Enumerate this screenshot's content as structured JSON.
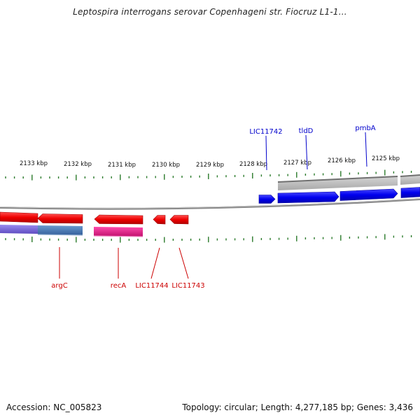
{
  "title": "Leptospira interrogans serovar Copenhageni str. Fiocruz L1-1...",
  "footer": {
    "accession": "Accession: NC_005823",
    "stats": "Topology: circular; Length: 4,277,185 bp; Genes: 3,436"
  },
  "scale_labels": [
    "2133 kbp",
    "2132 kbp",
    "2131 kbp",
    "2130 kbp",
    "2129 kbp",
    "2128 kbp",
    "2127 kbp",
    "2126 kbp",
    "2125 kbp"
  ],
  "forward_genes": [
    {
      "label": "LIC11742"
    },
    {
      "label": "tldD"
    },
    {
      "label": "pmbA"
    }
  ],
  "reverse_genes": [
    {
      "label": "argC"
    },
    {
      "label": "recA"
    },
    {
      "label": "LIC11744"
    },
    {
      "label": "LIC11743"
    }
  ],
  "colors": {
    "forward_gene": "#0000ee",
    "reverse_gene": "#ee0000",
    "forward_label": "#0000cc",
    "reverse_label": "#cc0000",
    "tick": "#2a7a2a",
    "backbone": "#888888",
    "cog_purple": "#7b68d8",
    "cog_steelblue": "#4a7cb0",
    "cog_magenta": "#e0208c",
    "cog_gray": "#b4b4b4"
  }
}
